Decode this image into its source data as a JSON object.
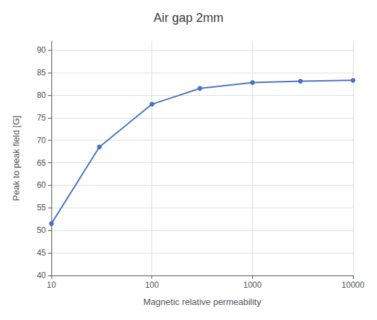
{
  "chart_data": {
    "type": "line",
    "title": "Air gap 2mm",
    "xlabel": "Magnetic relative permeability",
    "ylabel": "Peak to peak field [G]",
    "x": [
      10,
      30,
      100,
      300,
      1000,
      3000,
      10000
    ],
    "values": [
      51.5,
      68.5,
      78.0,
      81.5,
      82.8,
      83.1,
      83.3
    ],
    "color": "#4472C4",
    "marker": "circle",
    "log": "x",
    "xlim": [
      10,
      10000
    ],
    "xticks": [
      10,
      100,
      1000,
      10000
    ],
    "ylim": [
      40,
      92
    ],
    "yticks": [
      40,
      45,
      50,
      55,
      60,
      65,
      70,
      75,
      80,
      85,
      90
    ],
    "grid": true
  }
}
